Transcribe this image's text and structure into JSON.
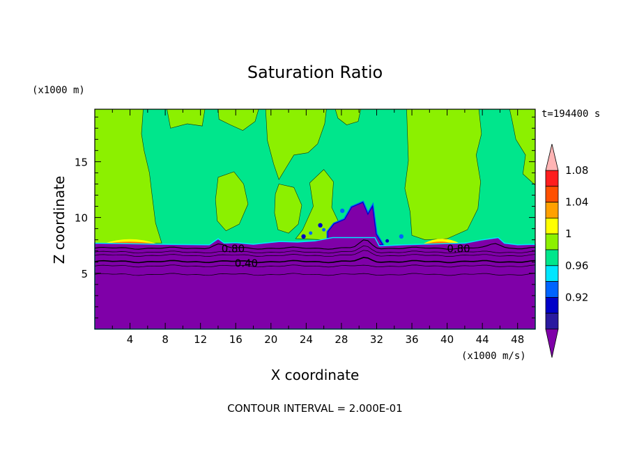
{
  "chart_data": {
    "type": "heatmap",
    "title": "Saturation Ratio",
    "xlabel": "X coordinate",
    "ylabel": "Z coordinate",
    "x_unit": "(x1000 m/s)",
    "y_unit": "(x1000 m)",
    "time_label": "t=194400 s",
    "footer": "CONTOUR INTERVAL = 2.000E-01",
    "xlim": [
      0,
      50
    ],
    "ylim": [
      0,
      19.7
    ],
    "x_ticks": [
      4,
      8,
      12,
      16,
      20,
      24,
      28,
      32,
      36,
      40,
      44,
      48
    ],
    "y_ticks": [
      5,
      10,
      15
    ],
    "colorbar": {
      "levels": [
        0.92,
        0.96,
        1,
        1.04,
        1.08
      ],
      "tick_labels": [
        "0.92",
        "0.96",
        "1",
        "1.04",
        "1.08"
      ],
      "colors": [
        "#7f00a8",
        "#2a1aa0",
        "#0000c8",
        "#0064ff",
        "#00e6ff",
        "#00e68c",
        "#8cf000",
        "#ffff00",
        "#ffa000",
        "#ff5000",
        "#ff1e1e",
        "#ffb4b4"
      ]
    },
    "contour_labels": [
      {
        "text": "0.80",
        "x": 15.7,
        "z": 7.2
      },
      {
        "text": "0.80",
        "x": 41.3,
        "z": 7.2
      },
      {
        "text": "0.40",
        "x": 17.2,
        "z": 5.9
      }
    ]
  }
}
